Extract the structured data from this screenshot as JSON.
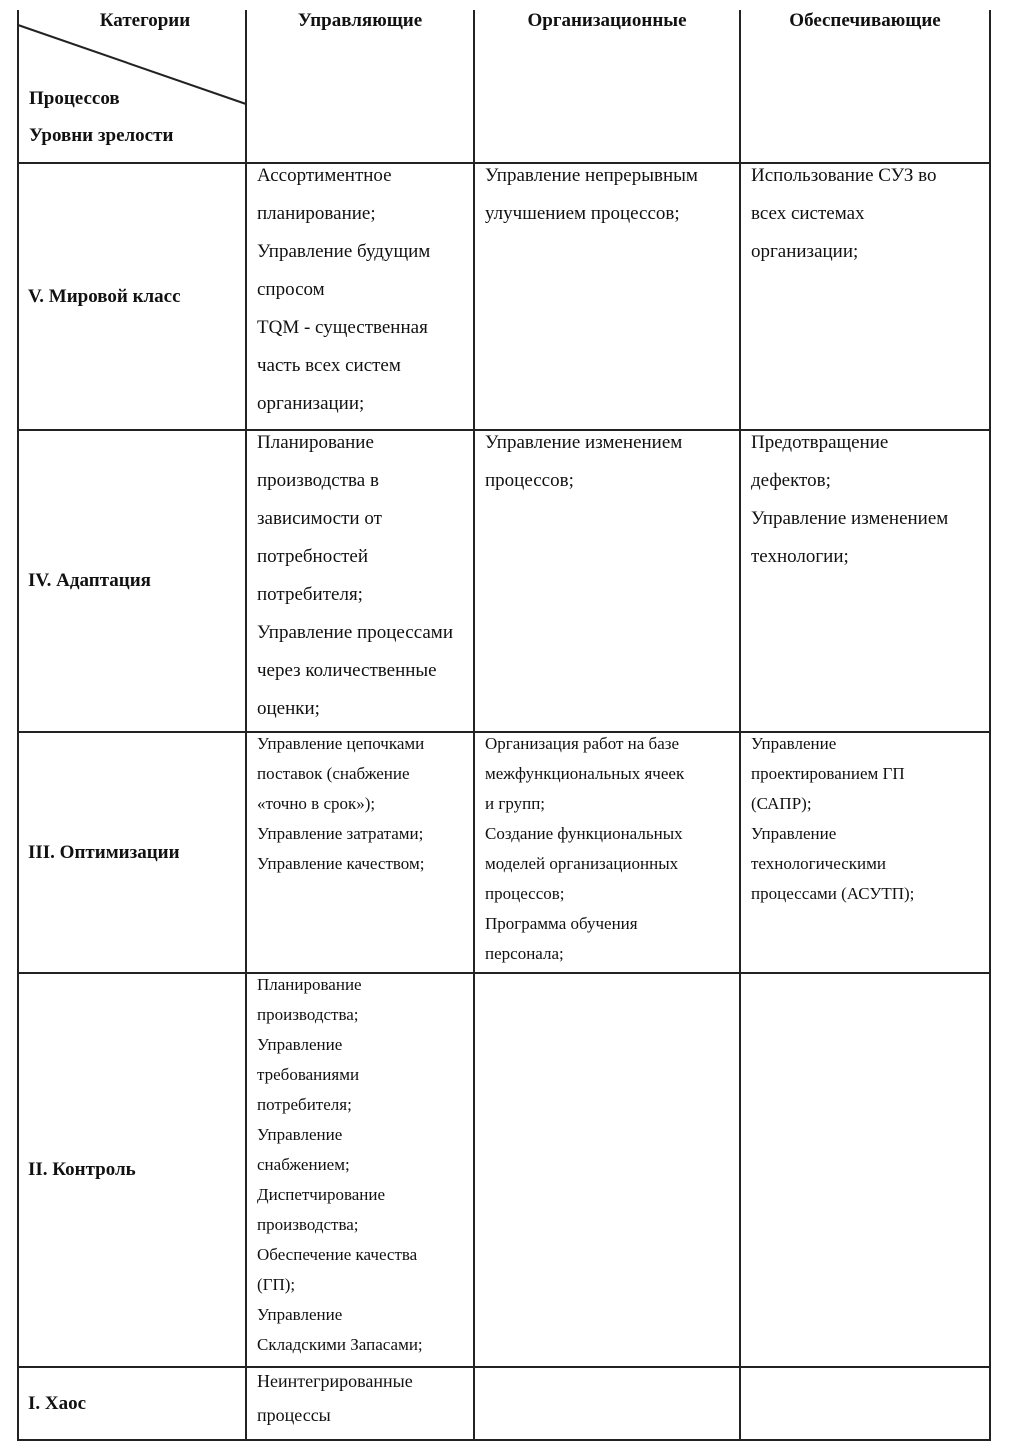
{
  "table": {
    "corner": {
      "top": "Категории",
      "middle": "Процессов",
      "bottom": "Уровни зрелости"
    },
    "columns": [
      "Управляющие",
      "Организационные",
      "Обеспечивающие"
    ],
    "rows": [
      {
        "level": "V. Мировой класс",
        "cells": [
          [
            "Ассортиментное",
            "планирование;",
            "Управление будущим",
            "спросом",
            "TQM - существенная",
            "часть всех систем",
            "организации;"
          ],
          [
            "Управление непрерывным",
            "улучшением процессов;"
          ],
          [
            "Использование СУЗ во",
            "всех системах",
            "организации;"
          ]
        ]
      },
      {
        "level": "IV. Адаптация",
        "cells": [
          [
            "Планирование",
            "производства в",
            "зависимости от",
            "потребностей",
            "потребителя;",
            "Управление процессами",
            "через количественные",
            "оценки;"
          ],
          [
            "Управление изменением",
            "процессов;"
          ],
          [
            "Предотвращение",
            "дефектов;",
            "Управление изменением",
            "технологии;"
          ]
        ]
      },
      {
        "level": "III. Оптимизации",
        "cells": [
          [
            "Управление цепочками",
            "поставок (снабжение",
            "«точно в срок»);",
            "Управление затратами;",
            "Управление качеством;"
          ],
          [
            "Организация работ на базе",
            "межфункциональных ячеек",
            "и групп;",
            "Создание функциональных",
            "моделей организационных",
            "процессов;",
            "Программа обучения",
            "персонала;"
          ],
          [
            "Управление",
            "проектированием ГП",
            "(САПР);",
            "Управление",
            "технологическими",
            "процессами (АСУТП);"
          ]
        ]
      },
      {
        "level": "II. Контроль",
        "cells": [
          [
            "Планирование",
            "производства;",
            "Управление",
            "требованиями",
            "потребителя;",
            "Управление",
            "снабжением;",
            "Диспетчирование",
            "производства;",
            "Обеспечение качества",
            "(ГП);",
            "Управление",
            "Складскими Запасами;"
          ],
          [],
          []
        ]
      },
      {
        "level": "I. Хаос",
        "cells": [
          [
            "Неинтегрированные",
            "процессы"
          ],
          [],
          []
        ]
      }
    ]
  }
}
